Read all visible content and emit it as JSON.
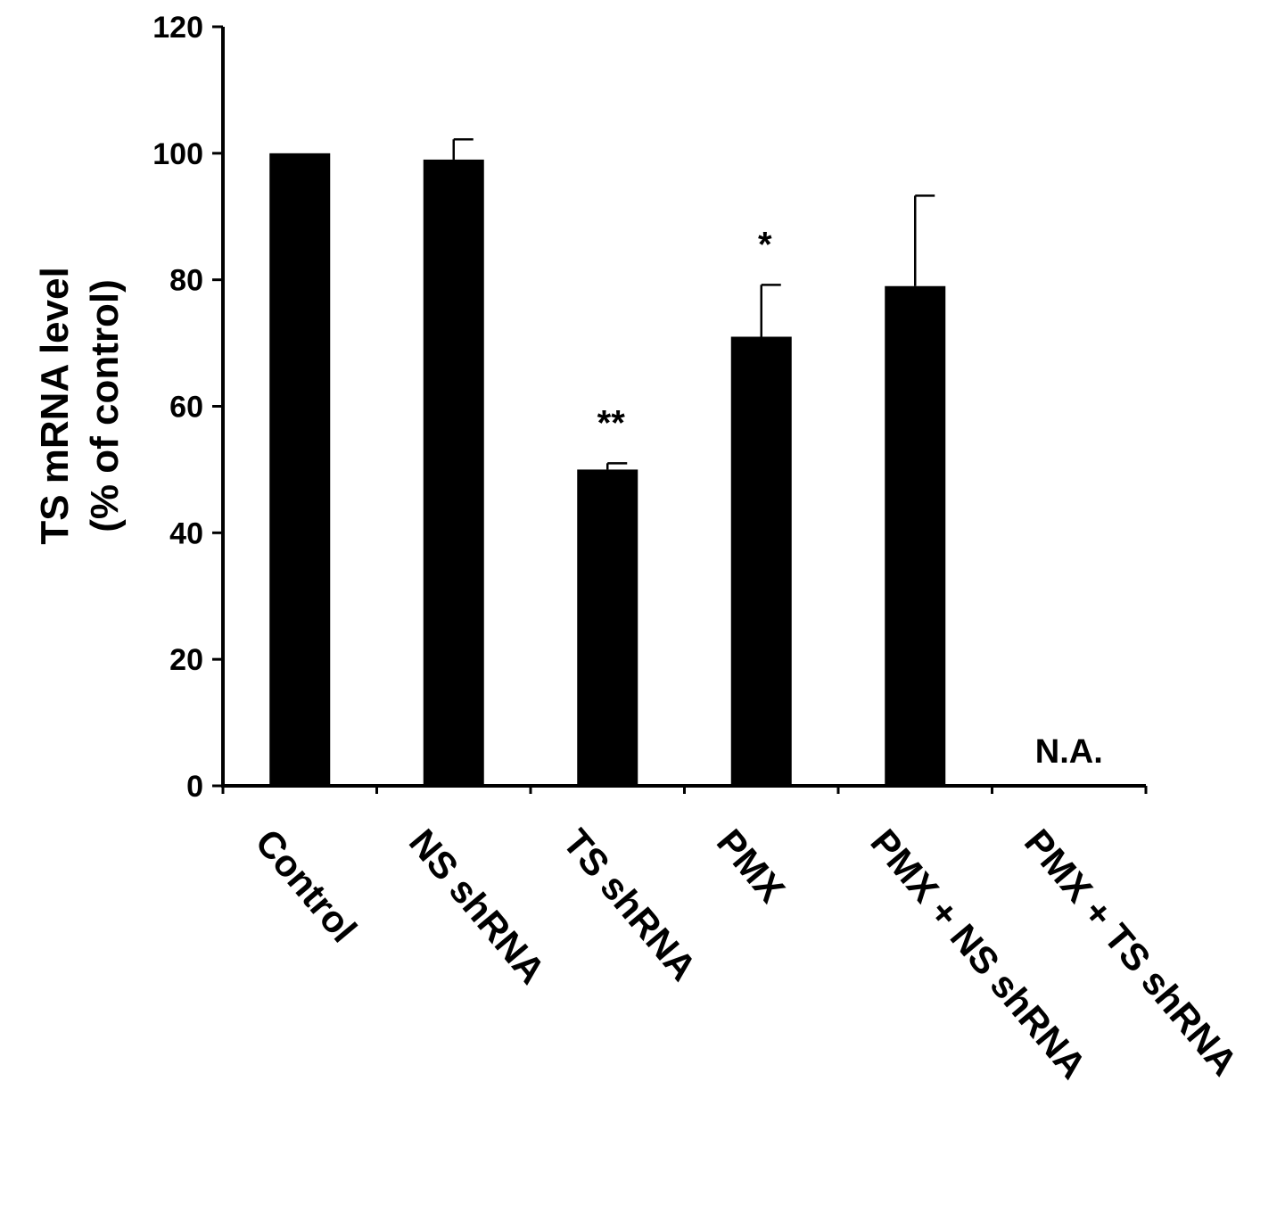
{
  "chart_data": {
    "type": "bar",
    "categories": [
      "Control",
      "NS shRNA",
      "TS shRNA",
      "PMX",
      "PMX + NS shRNA",
      "PMX + TS shRNA"
    ],
    "values": [
      100,
      99,
      50,
      71,
      79,
      null
    ],
    "errors": [
      0,
      3.2,
      1.0,
      8.2,
      14.3,
      null
    ],
    "annotations": [
      "",
      "",
      "**",
      "*",
      "",
      "N.A."
    ],
    "ylabel": "TS mRNA level",
    "ylabel_line2": "(% of control)",
    "xlabel": "",
    "ylim": [
      0,
      120
    ],
    "yticks": [
      0,
      20,
      40,
      60,
      80,
      100,
      120
    ],
    "grid": false,
    "bar_color": "#000000"
  }
}
